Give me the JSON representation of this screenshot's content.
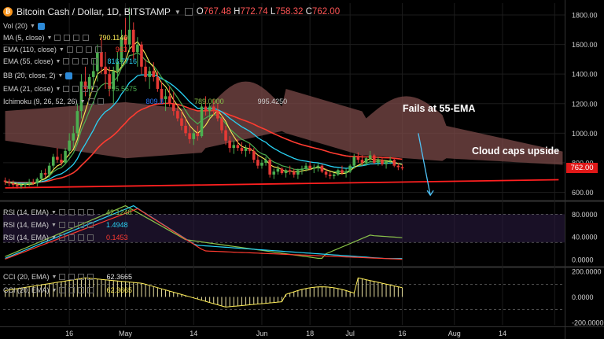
{
  "header": {
    "symbol": "Bitcoin Cash / Dollar, 1D, BITSTAMP",
    "o_label": "O",
    "o": "767.48",
    "h_label": "H",
    "h": "772.74",
    "l_label": "L",
    "l": "758.32",
    "c_label": "C",
    "c": "762.00"
  },
  "indicators": [
    {
      "label": "Vol (20)",
      "value": "",
      "color": "#cfcfcf"
    },
    {
      "label": "MA (5, close)",
      "value": "790.1140",
      "color": "#ffee58"
    },
    {
      "label": "EMA (110, close)",
      "value": "963",
      "color": "#ff3b30"
    },
    {
      "label": "EMA (55, close)",
      "value": "816.7716",
      "color": "#29d3f5"
    },
    {
      "label": "BB (20, close, 2)",
      "value": "",
      "color": "#cfcfcf"
    },
    {
      "label": "EMA (21, close)",
      "value": "795.5675",
      "color": "#4caf50"
    },
    {
      "label": "Ichimoku (9, 26, 52, 26)",
      "value": "809.8",
      "value2": "789.0000",
      "value3": "995.4250",
      "color": "#2979ff"
    }
  ],
  "rsi_labels": [
    {
      "label": "RSI (14, EMA)",
      "value": "42.1248",
      "color": "#8bc34a"
    },
    {
      "label": "RSI (14, EMA)",
      "value": "1.4948",
      "color": "#29d3f5"
    },
    {
      "label": "RSI (14, EMA)",
      "value": "0.1453",
      "color": "#ff3b30"
    }
  ],
  "cci_labels": [
    {
      "label": "CCI (20, EMA)",
      "value": "62.3665",
      "color": "#cfcfcf"
    },
    {
      "label": "CCI (20, EMA)",
      "value": "62.3665",
      "color": "#ffee58"
    }
  ],
  "annotations": {
    "fails": "Fails at 55-EMA",
    "cloud": "Cloud caps upside"
  },
  "price_tag": "762.00",
  "colors": {
    "up": "#4caf50",
    "down": "#e53935",
    "cloud": "#7b4a48",
    "cloud_light": "#5f6e44",
    "trend": "#ff2020"
  },
  "chart_data": [
    {
      "type": "candlestick",
      "title": "Bitcoin Cash / Dollar, 1D, BITSTAMP",
      "ylim": [
        560,
        1880
      ],
      "y_ticks": [
        600,
        800,
        1000,
        1200,
        1400,
        1600,
        1800
      ],
      "y_tick_labels": [
        "600.00",
        "800.00",
        "1000.00",
        "1200.00",
        "1400.00",
        "1600.00",
        "1800.00"
      ],
      "x_ticks": [
        16,
        30,
        47,
        64,
        76,
        86,
        99,
        112,
        124,
        137
      ],
      "x_tick_labels": [
        "16",
        "May",
        "14",
        "Jun",
        "18",
        "Jul",
        "16",
        "Aug",
        "14",
        ""
      ],
      "candles_ohlc": [
        [
          680,
          700,
          650,
          670
        ],
        [
          670,
          690,
          640,
          660
        ],
        [
          660,
          680,
          630,
          650
        ],
        [
          650,
          665,
          625,
          640
        ],
        [
          640,
          660,
          625,
          650
        ],
        [
          650,
          670,
          630,
          660
        ],
        [
          660,
          690,
          640,
          670
        ],
        [
          670,
          690,
          650,
          660
        ],
        [
          660,
          700,
          640,
          690
        ],
        [
          690,
          750,
          670,
          730
        ],
        [
          730,
          760,
          700,
          720
        ],
        [
          720,
          800,
          700,
          780
        ],
        [
          780,
          860,
          760,
          840
        ],
        [
          840,
          900,
          800,
          820
        ],
        [
          820,
          860,
          780,
          800
        ],
        [
          800,
          900,
          790,
          880
        ],
        [
          880,
          1000,
          850,
          950
        ],
        [
          950,
          1050,
          900,
          1000
        ],
        [
          1000,
          1200,
          980,
          1150
        ],
        [
          1150,
          1400,
          1100,
          1350
        ],
        [
          1350,
          1450,
          1250,
          1300
        ],
        [
          1300,
          1400,
          1250,
          1380
        ],
        [
          1380,
          1500,
          1300,
          1420
        ],
        [
          1420,
          1600,
          1350,
          1550
        ],
        [
          1550,
          1650,
          1400,
          1450
        ],
        [
          1450,
          1550,
          1300,
          1400
        ],
        [
          1400,
          1450,
          1250,
          1300
        ],
        [
          1300,
          1450,
          1200,
          1420
        ],
        [
          1420,
          1550,
          1350,
          1480
        ],
        [
          1480,
          1700,
          1450,
          1650
        ],
        [
          1650,
          1780,
          1550,
          1600
        ],
        [
          1600,
          1850,
          1550,
          1700
        ],
        [
          1700,
          1750,
          1500,
          1550
        ],
        [
          1550,
          1650,
          1450,
          1600
        ],
        [
          1600,
          1620,
          1400,
          1450
        ],
        [
          1450,
          1500,
          1350,
          1380
        ],
        [
          1380,
          1450,
          1300,
          1420
        ],
        [
          1420,
          1480,
          1350,
          1380
        ],
        [
          1380,
          1420,
          1280,
          1300
        ],
        [
          1300,
          1350,
          1200,
          1230
        ],
        [
          1230,
          1300,
          1150,
          1250
        ],
        [
          1250,
          1320,
          1180,
          1200
        ],
        [
          1200,
          1280,
          1120,
          1150
        ],
        [
          1150,
          1200,
          1080,
          1100
        ],
        [
          1100,
          1150,
          1020,
          1050
        ],
        [
          1050,
          1100,
          980,
          1000
        ],
        [
          1000,
          1050,
          930,
          960
        ],
        [
          960,
          1020,
          920,
          1000
        ],
        [
          1000,
          1050,
          950,
          980
        ],
        [
          980,
          1200,
          970,
          1180
        ],
        [
          1180,
          1250,
          1120,
          1150
        ],
        [
          1150,
          1200,
          1100,
          1180
        ],
        [
          1180,
          1230,
          1120,
          1150
        ],
        [
          1150,
          1200,
          1080,
          1100
        ],
        [
          1100,
          1120,
          1000,
          1020
        ],
        [
          1020,
          1050,
          920,
          950
        ],
        [
          950,
          980,
          870,
          900
        ],
        [
          900,
          950,
          860,
          920
        ],
        [
          920,
          960,
          880,
          900
        ],
        [
          900,
          940,
          860,
          880
        ],
        [
          880,
          920,
          840,
          900
        ],
        [
          900,
          930,
          860,
          880
        ],
        [
          880,
          900,
          800,
          820
        ],
        [
          820,
          850,
          760,
          780
        ],
        [
          780,
          820,
          760,
          800
        ],
        [
          800,
          840,
          780,
          820
        ],
        [
          820,
          830,
          700,
          720
        ],
        [
          720,
          760,
          690,
          740
        ],
        [
          740,
          780,
          720,
          760
        ],
        [
          760,
          770,
          720,
          730
        ],
        [
          730,
          760,
          700,
          750
        ],
        [
          750,
          780,
          720,
          740
        ],
        [
          740,
          760,
          700,
          720
        ],
        [
          720,
          760,
          690,
          750
        ],
        [
          750,
          780,
          720,
          760
        ],
        [
          760,
          800,
          740,
          780
        ],
        [
          780,
          810,
          750,
          760
        ],
        [
          760,
          790,
          730,
          770
        ],
        [
          770,
          800,
          740,
          780
        ],
        [
          780,
          790,
          730,
          740
        ],
        [
          740,
          760,
          700,
          720
        ],
        [
          720,
          740,
          690,
          710
        ],
        [
          710,
          730,
          690,
          720
        ],
        [
          720,
          760,
          710,
          750
        ],
        [
          750,
          780,
          720,
          730
        ],
        [
          730,
          760,
          700,
          740
        ],
        [
          740,
          790,
          730,
          780
        ],
        [
          780,
          860,
          760,
          840
        ],
        [
          840,
          870,
          800,
          820
        ],
        [
          820,
          850,
          780,
          800
        ],
        [
          800,
          840,
          780,
          830
        ],
        [
          830,
          880,
          810,
          850
        ],
        [
          850,
          860,
          790,
          800
        ],
        [
          800,
          840,
          780,
          820
        ],
        [
          820,
          830,
          780,
          790
        ],
        [
          790,
          820,
          760,
          810
        ],
        [
          810,
          840,
          790,
          820
        ],
        [
          820,
          830,
          770,
          780
        ],
        [
          780,
          800,
          750,
          770
        ],
        [
          770,
          790,
          750,
          762
        ]
      ],
      "annotations": [
        "Fails at 55-EMA",
        "Cloud caps upside"
      ]
    },
    {
      "type": "line",
      "name": "RSI",
      "ylim": [
        -10,
        100
      ],
      "y_ticks": [
        0,
        40,
        80
      ],
      "y_tick_labels": [
        "0.0000",
        "40.0000",
        "80.0000"
      ]
    },
    {
      "type": "line",
      "name": "CCI",
      "ylim": [
        -220,
        220
      ],
      "y_ticks": [
        -200,
        0,
        200
      ],
      "y_tick_labels": [
        "-200.0000",
        "0.0000",
        "200.0000"
      ]
    }
  ]
}
